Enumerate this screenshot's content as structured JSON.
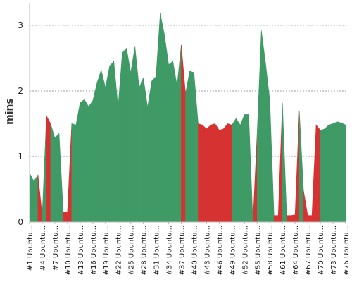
{
  "chart_data": {
    "type": "area",
    "ylabel": "mins",
    "ylim": [
      0,
      3.3
    ],
    "yticks": [
      0,
      1,
      2,
      3
    ],
    "grid": "horizontal-dashed",
    "series_colors": {
      "pass": "#3f9a65",
      "fail": "#d63232"
    },
    "x_tick_labels": [
      "#1 Ubuntu...",
      "#4 Ubuntu...",
      "#7 Ubuntu...",
      "#10 Ubuntu...",
      "#13 Ubuntu...",
      "#16 Ubuntu...",
      "#19 Ubuntu...",
      "#22 Ubuntu...",
      "#25 Ubuntu...",
      "#28 Ubuntu...",
      "#31 Ubuntu...",
      "#34 Ubuntu...",
      "#37 Ubuntu...",
      "#40 Ubuntu...",
      "#43 Ubuntu...",
      "#46 Ubuntu...",
      "#49 Ubuntu...",
      "#52 Ubuntu...",
      "#55 Ubuntu...",
      "#58 Ubuntu...",
      "#61 Ubuntu...",
      "#64 Ubuntu...",
      "#67 Ubuntu...",
      "#70 Ubuntu...",
      "#73 Ubuntu...",
      "#76 Ubuntu..."
    ],
    "builds": [
      1,
      2,
      3,
      4,
      5,
      6,
      7,
      8,
      9,
      10,
      11,
      12,
      13,
      14,
      15,
      16,
      17,
      18,
      19,
      20,
      21,
      22,
      23,
      24,
      25,
      26,
      27,
      28,
      29,
      30,
      31,
      32,
      33,
      34,
      35,
      36,
      37,
      38,
      39,
      40,
      41,
      42,
      43,
      44,
      45,
      46,
      47,
      48,
      49,
      50,
      51,
      52,
      53,
      54,
      55,
      56,
      57,
      58,
      59,
      60,
      61,
      62,
      63,
      64,
      65,
      66,
      67,
      68,
      69,
      70,
      71,
      72,
      73,
      74,
      75,
      76
    ],
    "values": [
      0.75,
      0.62,
      0.72,
      0.1,
      1.62,
      1.5,
      1.28,
      1.35,
      0.15,
      0.16,
      1.5,
      1.48,
      1.82,
      1.87,
      1.76,
      1.85,
      2.12,
      2.32,
      2.05,
      2.38,
      2.45,
      1.75,
      2.58,
      2.65,
      2.28,
      2.68,
      2.05,
      2.2,
      1.75,
      2.15,
      2.22,
      3.18,
      2.86,
      2.4,
      2.45,
      2.08,
      2.7,
      1.96,
      2.3,
      2.28,
      1.5,
      1.48,
      1.42,
      1.48,
      1.5,
      1.4,
      1.42,
      1.5,
      1.48,
      1.58,
      1.48,
      1.64,
      1.64,
      0.0,
      1.36,
      2.92,
      2.42,
      1.86,
      0.1,
      0.1,
      1.82,
      0.1,
      0.1,
      0.11,
      1.7,
      0.48,
      0.1,
      0.1,
      1.48,
      1.4,
      1.42,
      1.48,
      1.5,
      1.53,
      1.51,
      1.48
    ],
    "status": [
      "pass",
      "pass",
      "fail",
      "pass",
      "fail",
      "pass",
      "pass",
      "pass",
      "fail",
      "fail",
      "pass",
      "pass",
      "pass",
      "pass",
      "pass",
      "pass",
      "pass",
      "pass",
      "pass",
      "pass",
      "pass",
      "pass",
      "pass",
      "pass",
      "pass",
      "pass",
      "pass",
      "pass",
      "pass",
      "pass",
      "pass",
      "pass",
      "pass",
      "pass",
      "pass",
      "pass",
      "fail",
      "pass",
      "pass",
      "pass",
      "fail",
      "fail",
      "fail",
      "fail",
      "fail",
      "fail",
      "fail",
      "fail",
      "pass",
      "pass",
      "pass",
      "pass",
      "pass",
      "fail",
      "pass",
      "pass",
      "pass",
      "pass",
      "fail",
      "fail",
      "pass",
      "fail",
      "fail",
      "fail",
      "pass",
      "fail",
      "fail",
      "fail",
      "fail",
      "pass",
      "pass",
      "pass",
      "pass",
      "pass",
      "pass",
      "pass"
    ]
  }
}
